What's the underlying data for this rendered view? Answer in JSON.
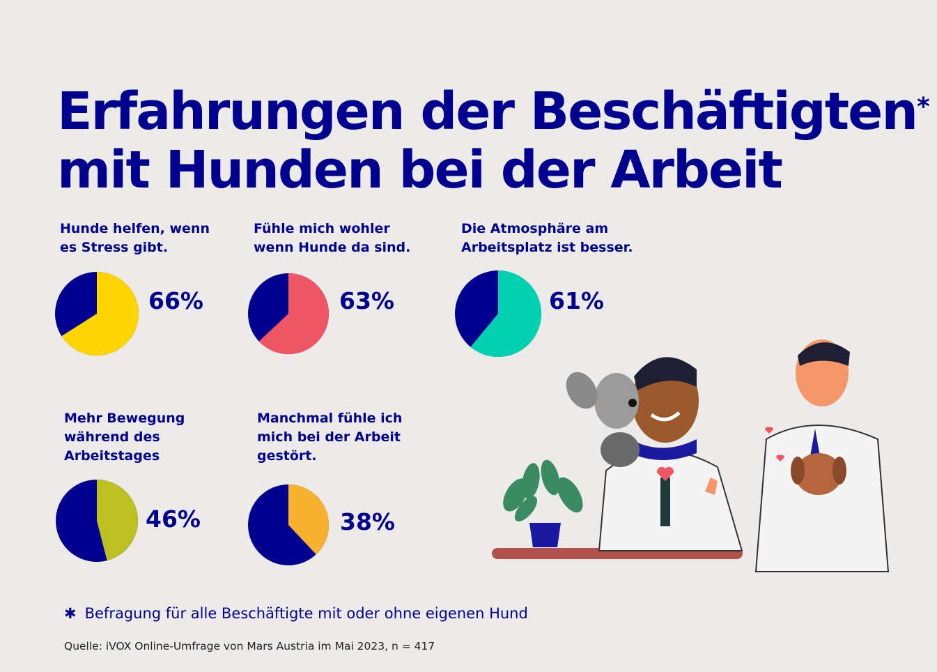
{
  "title": {
    "line1": "Erfahrungen der Beschäftigten",
    "asterisk": "*",
    "line2": "mit Hunden bei der Arbeit"
  },
  "chart_data": {
    "type": "pie",
    "title": "Erfahrungen der Beschäftigten mit Hunden bei der Arbeit",
    "charts": [
      {
        "label": "Hunde helfen, wenn\nes Stress gibt.",
        "value": 66,
        "display": "66%",
        "color": "#ffd500",
        "rest_color": "#00008f"
      },
      {
        "label": "Fühle mich wohler\nwenn Hunde da sind.",
        "value": 63,
        "display": "63%",
        "color": "#f05563",
        "rest_color": "#00008f"
      },
      {
        "label": "Die Atmosphäre am\nArbeitsplatz ist besser.",
        "value": 61,
        "display": "61%",
        "color": "#00d1b2",
        "rest_color": "#00008f"
      },
      {
        "label": "Mehr Bewegung\nwährend des\nArbeitstages",
        "value": 46,
        "display": "46%",
        "color": "#bcc021",
        "rest_color": "#00008f"
      },
      {
        "label": "Manchmal fühle ich\nmich bei der Arbeit\ngestört.",
        "value": 38,
        "display": "38%",
        "color": "#f7b12e",
        "rest_color": "#00008f"
      }
    ]
  },
  "footnote": {
    "symbol": "✱",
    "text": "Befragung für alle Beschäftigte mit oder ohne eigenen Hund"
  },
  "source": "Quelle: iVOX Online-Umfrage von Mars Austria im Mai 2023, n = 417"
}
